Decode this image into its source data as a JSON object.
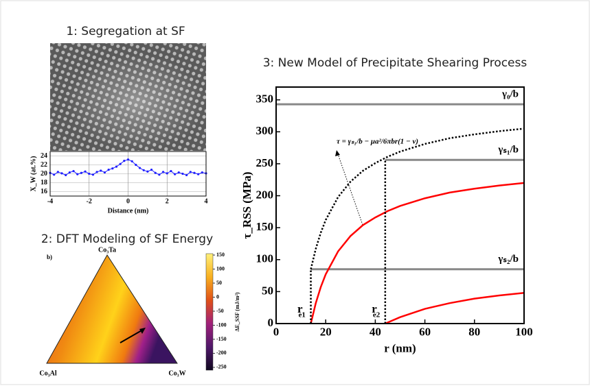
{
  "chart_data": [
    {
      "type": "line",
      "title": "1: Segregation at SF",
      "x_label": "Distance (nm)",
      "y_label": "X_W (at.%)",
      "x": [
        -4,
        -3.8,
        -3.6,
        -3.4,
        -3.2,
        -3,
        -2.8,
        -2.6,
        -2.4,
        -2.2,
        -2,
        -1.8,
        -1.6,
        -1.4,
        -1.2,
        -1,
        -0.8,
        -0.6,
        -0.4,
        -0.2,
        0,
        0.2,
        0.4,
        0.6,
        0.8,
        1,
        1.2,
        1.4,
        1.6,
        1.8,
        2,
        2.2,
        2.4,
        2.6,
        2.8,
        3,
        3.2,
        3.4,
        3.6,
        3.8,
        4
      ],
      "series": [
        {
          "color": "#1f1fff",
          "values": [
            20.2,
            19.8,
            20.4,
            20.1,
            19.7,
            20.3,
            20.6,
            19.9,
            20.2,
            20.5,
            20.0,
            19.8,
            20.4,
            20.7,
            20.3,
            20.9,
            21.2,
            21.6,
            22.2,
            22.9,
            23.2,
            22.8,
            22.0,
            21.3,
            20.8,
            20.5,
            20.9,
            20.2,
            19.8,
            20.4,
            20.1,
            20.6,
            19.9,
            20.3,
            20.0,
            19.7,
            20.4,
            20.2,
            19.9,
            20.3,
            20.1
          ]
        }
      ],
      "xlim": [
        -4,
        4
      ],
      "xticks": [
        -4,
        -2,
        0,
        2,
        4
      ],
      "ylim": [
        15,
        25
      ],
      "yticks": [
        16,
        18,
        20,
        22,
        24
      ],
      "grid": true
    },
    {
      "type": "line",
      "title": "3: New Model of Precipitate Shearing Process",
      "x_label": "r (nm)",
      "y_label": "τ_RSS (MPa)",
      "xlim": [
        0,
        100
      ],
      "xticks": [
        0,
        20,
        40,
        60,
        80,
        100
      ],
      "ylim": [
        0,
        370
      ],
      "yticks": [
        0,
        50,
        100,
        150,
        200,
        250,
        300,
        350
      ],
      "series": [
        {
          "color": "#000000",
          "style": "dotted",
          "x": [
            14,
            16,
            18,
            20,
            25,
            30,
            35,
            40,
            45,
            50,
            60,
            70,
            80,
            90,
            100
          ],
          "values": [
            85,
            117,
            142,
            162,
            198,
            222,
            239,
            251,
            261,
            269,
            281,
            290,
            296,
            301,
            305
          ]
        },
        {
          "color": "#ff0000",
          "style": "solid",
          "x": [
            14,
            16,
            18,
            20,
            25,
            30,
            35,
            40,
            45,
            50,
            60,
            70,
            80,
            90,
            100
          ],
          "values": [
            0,
            32,
            57,
            77,
            113,
            137,
            154,
            166,
            176,
            184,
            196,
            205,
            211,
            216,
            220
          ]
        },
        {
          "color": "#ff0000",
          "style": "solid",
          "x": [
            44,
            50,
            60,
            70,
            80,
            90,
            100
          ],
          "values": [
            0,
            10,
            23,
            32,
            39,
            44,
            48
          ]
        },
        {
          "color": "#000000",
          "style": "dotted",
          "x": [
            14,
            14
          ],
          "values": [
            0,
            85
          ]
        },
        {
          "color": "#000000",
          "style": "dotted",
          "x": [
            44,
            44
          ],
          "values": [
            0,
            256
          ]
        }
      ],
      "hlines": [
        {
          "label": "γ₀/b",
          "value": 343,
          "x": [
            0,
            100
          ]
        },
        {
          "label": "γₛ₁/b",
          "value": 256,
          "x": [
            44,
            100
          ]
        },
        {
          "label": "γₛ₂/b",
          "value": 85,
          "x": [
            14,
            100
          ]
        }
      ],
      "annotations": [
        {
          "text": "r",
          "sub": "e1",
          "x": 14
        },
        {
          "text": "r",
          "sub": "e2",
          "x": 44
        }
      ],
      "formula": "τ = γₛ₁/b − μa²/6πbr(1 − ν)"
    }
  ],
  "panel2": {
    "title": "2: DFT Modeling of SF Energy",
    "tag": "b)",
    "vertices": [
      "Co₃Ta",
      "Co₃Al",
      "Co₃W"
    ],
    "colorbar": {
      "label": "ΔE_SSF (mJ/m²)",
      "lim": [
        -260,
        155
      ],
      "ticks": [
        150,
        100,
        50,
        0,
        -50,
        -100,
        -150,
        -200,
        -250
      ]
    }
  }
}
